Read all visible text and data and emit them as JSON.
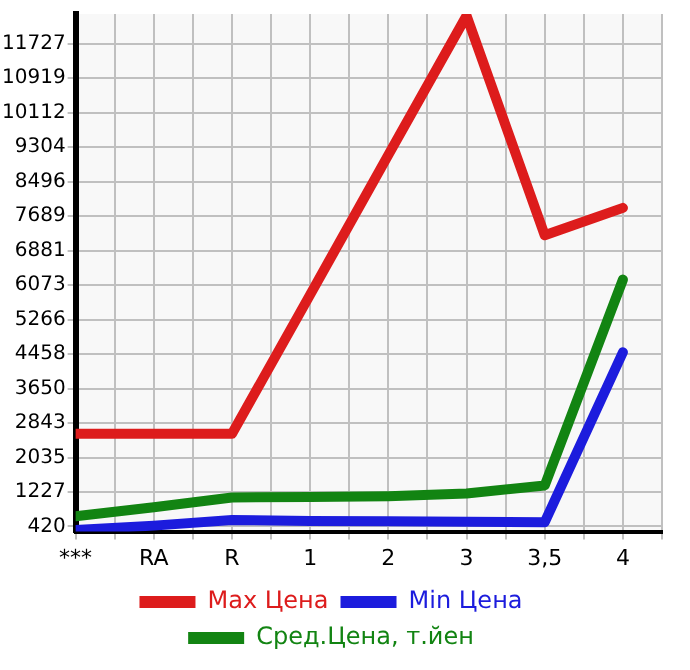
{
  "chart_data": {
    "type": "line",
    "categories": [
      "***",
      "RA",
      "R",
      "1",
      "2",
      "3",
      "3,5",
      "4"
    ],
    "series": [
      {
        "name": "Max Цена",
        "color": "#dd1c1c",
        "values": [
          2590,
          2590,
          2590,
          5850,
          9120,
          12380,
          7240,
          7880
        ]
      },
      {
        "name": "Min Цена",
        "color": "#1c1cdd",
        "values": [
          340,
          440,
          570,
          550,
          540,
          530,
          520,
          4500
        ]
      },
      {
        "name": "Сред.Цена, т.йен",
        "color": "#128412",
        "values": [
          660,
          870,
          1100,
          1110,
          1130,
          1190,
          1380,
          6200
        ]
      }
    ],
    "ylim": [
      300,
      12420
    ],
    "yticks": [
      420,
      1227,
      2035,
      2843,
      3650,
      4458,
      5266,
      6073,
      6881,
      7689,
      8496,
      9304,
      10112,
      10919,
      11727
    ],
    "grid": true,
    "legend": "bottom",
    "marker": "none",
    "line_style": "solid"
  }
}
